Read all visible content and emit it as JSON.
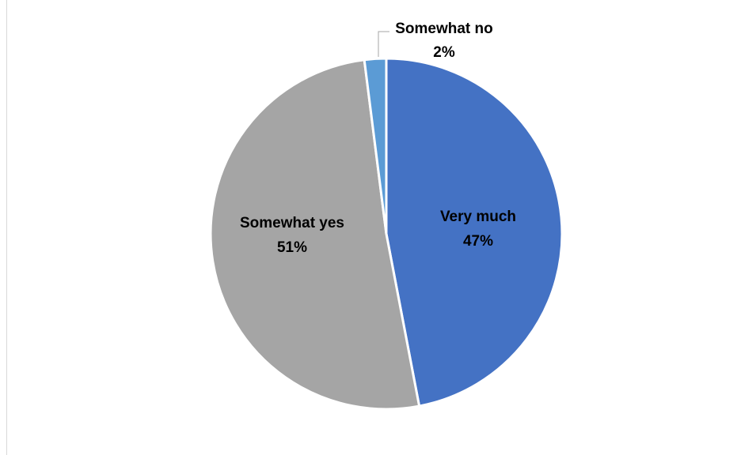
{
  "chart_data": {
    "type": "pie",
    "title": "",
    "categories": [
      "Very much",
      "Somewhat yes",
      "Somewhat no"
    ],
    "values": [
      47,
      51,
      2
    ],
    "value_labels": [
      "47%",
      "51%",
      "2%"
    ],
    "colors": [
      "#4472c4",
      "#a5a5a5",
      "#5b9bd5"
    ],
    "start_angle_deg": 0,
    "direction": "clockwise",
    "legend": "none",
    "data_labels": "category-and-percent"
  }
}
